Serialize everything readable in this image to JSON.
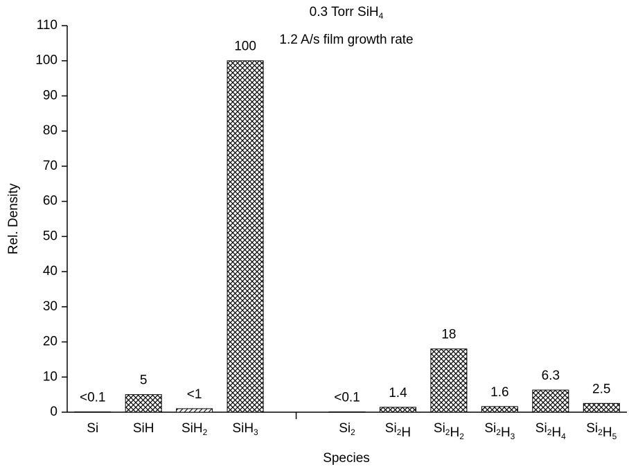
{
  "chart_data": {
    "type": "bar",
    "title": "0.3 Torr SiH4",
    "subtitle": "1.2 A/s film growth rate",
    "x_label": "Species",
    "y_label": "Rel. Density",
    "categories": [
      "Si",
      "SiH",
      "SiH2",
      "SiH3",
      null,
      "Si2",
      "Si2H",
      "Si2H2",
      "Si2H3",
      "Si2H4",
      "Si2H5"
    ],
    "values": [
      0.1,
      5,
      1,
      100,
      null,
      0.1,
      1.4,
      18,
      1.6,
      6.3,
      2.5
    ],
    "value_labels": [
      "<0.1",
      "5",
      "<1",
      "100",
      null,
      "<0.1",
      "1.4",
      "18",
      "1.6",
      "6.3",
      "2.5"
    ],
    "hatch": [
      "cross",
      "cross",
      "diagonal",
      "cross",
      null,
      "cross",
      "cross",
      "cross",
      "cross",
      "cross",
      "cross"
    ],
    "color": "#000000",
    "ylim": [
      0,
      110
    ],
    "yticks": [
      0,
      10,
      20,
      30,
      40,
      50,
      60,
      70,
      80,
      90,
      100,
      110
    ]
  }
}
